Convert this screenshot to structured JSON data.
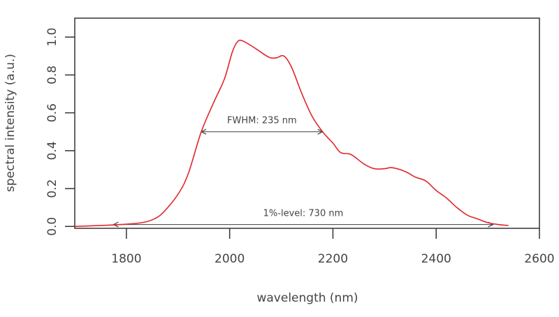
{
  "chart_data": {
    "type": "line",
    "title": "",
    "xlabel": "wavelength (nm)",
    "ylabel": "spectral intensity (a.u.)",
    "xlim": [
      1700,
      2600
    ],
    "ylim": [
      -0.01,
      1.1
    ],
    "xticks": [
      1800,
      2000,
      2200,
      2400,
      2600
    ],
    "xtick_labels": [
      "1800",
      "2000",
      "2200",
      "2400",
      "2600"
    ],
    "yticks": [
      0.0,
      0.2,
      0.4,
      0.6,
      0.8,
      1.0
    ],
    "ytick_labels": [
      "0.0",
      "0.2",
      "0.4",
      "0.6",
      "0.8",
      "1.0"
    ],
    "grid": false,
    "series": [
      {
        "name": "spectrum",
        "color": "#e0262b",
        "x": [
          1700,
          1750,
          1800,
          1830,
          1850,
          1870,
          1900,
          1920,
          1945,
          1970,
          1990,
          2005,
          2015,
          2025,
          2050,
          2075,
          2090,
          2105,
          2120,
          2140,
          2160,
          2180,
          2200,
          2215,
          2235,
          2260,
          2280,
          2300,
          2315,
          2340,
          2360,
          2380,
          2400,
          2420,
          2440,
          2460,
          2480,
          2500,
          2520,
          2540
        ],
        "y": [
          0.0,
          0.005,
          0.012,
          0.02,
          0.035,
          0.07,
          0.17,
          0.28,
          0.5,
          0.66,
          0.78,
          0.92,
          0.975,
          0.98,
          0.94,
          0.895,
          0.89,
          0.9,
          0.84,
          0.7,
          0.58,
          0.5,
          0.44,
          0.39,
          0.38,
          0.33,
          0.305,
          0.305,
          0.31,
          0.29,
          0.26,
          0.24,
          0.19,
          0.15,
          0.1,
          0.06,
          0.04,
          0.02,
          0.01,
          0.005
        ]
      }
    ],
    "annotations": [
      {
        "text": "FWHM: 235 nm",
        "x_start": 1945,
        "x_end": 2180,
        "y": 0.5
      },
      {
        "text": "1%-level: 730 nm",
        "x_start": 1775,
        "x_end": 2510,
        "y": 0.01
      }
    ]
  }
}
